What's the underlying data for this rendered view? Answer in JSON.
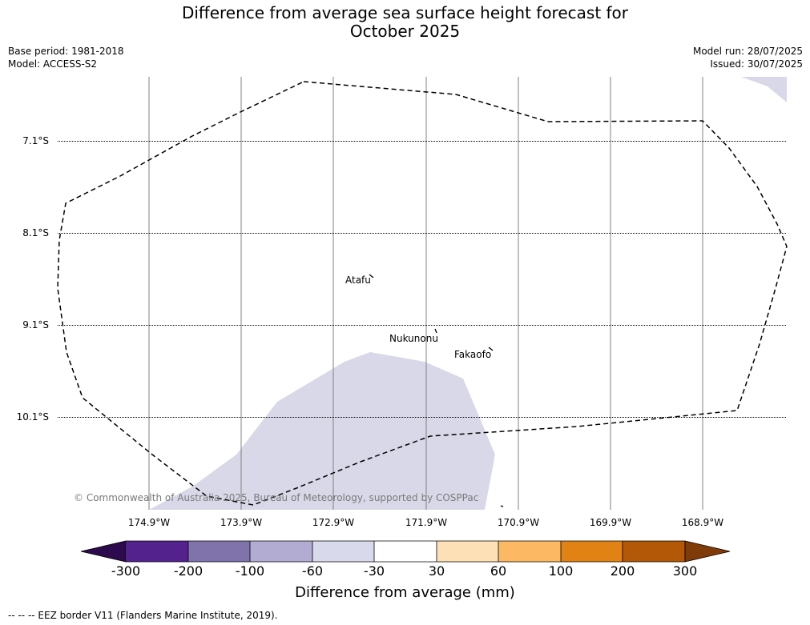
{
  "title_line1": "Difference from average sea surface height forecast for",
  "title_line2": "October 2025",
  "base_period": "Base period: 1981-2018",
  "model": "Model: ACCESS-S2",
  "model_run": "Model run: 28/07/2025",
  "issued": "Issued: 30/07/2025",
  "map": {
    "lat_labels": [
      "7.1°S",
      "8.1°S",
      "9.1°S",
      "10.1°S"
    ],
    "lon_labels": [
      "174.9°W",
      "173.9°W",
      "172.9°W",
      "171.9°W",
      "170.9°W",
      "169.9°W",
      "168.9°W"
    ],
    "islands": [
      "Atafu",
      "Nukunonu",
      "Fakaofo"
    ],
    "copyright": "© Commonwealth of Australia 2025, Bureau of Meteorology, supported by COSPPac",
    "anomaly_fill_color": "#d8d8e8"
  },
  "colorbar": {
    "ticks": [
      "-300",
      "-200",
      "-100",
      "-60",
      "-30",
      "30",
      "60",
      "100",
      "200",
      "300"
    ],
    "colors": [
      "#2d0a4e",
      "#54228d",
      "#8073ac",
      "#b2abd2",
      "#d8daeb",
      "#ffffff",
      "#fee0b6",
      "#fdb863",
      "#e08214",
      "#b35806",
      "#7f3b08"
    ],
    "label": "Difference from average (mm)"
  },
  "footer": "--  --  -- EEZ border V11 (Flanders Marine Institute, 2019)."
}
